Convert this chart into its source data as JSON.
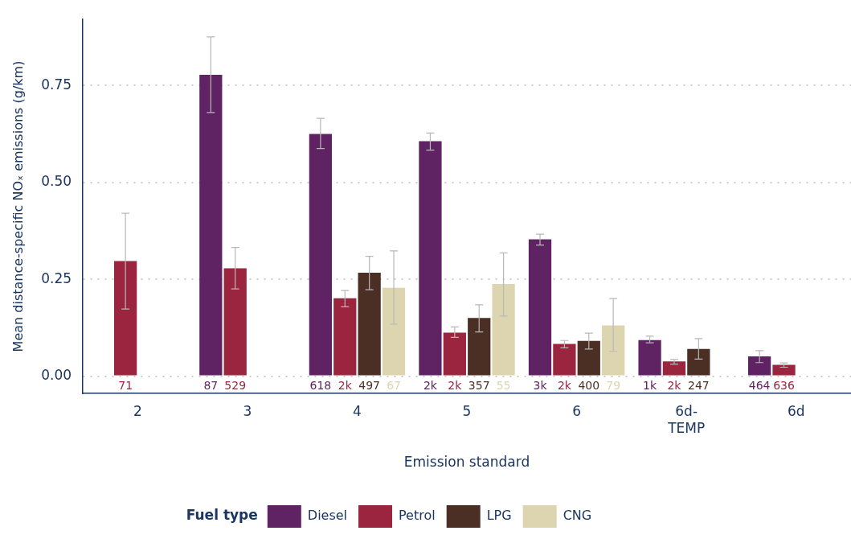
{
  "chart_data": {
    "type": "bar",
    "xlabel": "Emission standard",
    "ylabel": "Mean distance-specific NOₓ emissions (g/km)",
    "legend_title": "Fuel type",
    "categories": [
      "2",
      "3",
      "4",
      "5",
      "6",
      "6d-TEMP",
      "6d"
    ],
    "series": [
      {
        "name": "Diesel",
        "color": "#5f2363",
        "values": [
          null,
          0.777,
          0.625,
          0.606,
          0.353,
          0.093,
          0.051
        ],
        "errors": [
          null,
          [
            0.68,
            0.875
          ],
          [
            0.587,
            0.665
          ],
          [
            0.583,
            0.627
          ],
          [
            0.338,
            0.366
          ],
          [
            0.086,
            0.103
          ],
          [
            0.035,
            0.066
          ]
        ]
      },
      {
        "name": "Petrol",
        "color": "#9b243e",
        "values": [
          0.297,
          0.278,
          0.201,
          0.112,
          0.083,
          0.038,
          0.029
        ],
        "errors": [
          [
            0.173,
            0.42
          ],
          [
            0.225,
            0.332
          ],
          [
            0.179,
            0.221
          ],
          [
            0.1,
            0.127
          ],
          [
            0.073,
            0.092
          ],
          [
            0.031,
            0.043
          ],
          [
            0.023,
            0.034
          ]
        ]
      },
      {
        "name": "LPG",
        "color": "#4b2e24",
        "values": [
          null,
          null,
          0.267,
          0.15,
          0.091,
          0.07,
          null
        ],
        "errors": [
          null,
          null,
          [
            0.223,
            0.309
          ],
          [
            0.114,
            0.184
          ],
          [
            0.07,
            0.111
          ],
          [
            0.044,
            0.097
          ],
          null
        ]
      },
      {
        "name": "CNG",
        "color": "#ddd5b0",
        "values": [
          null,
          null,
          0.228,
          0.238,
          0.131,
          null,
          null
        ],
        "errors": [
          null,
          null,
          [
            0.134,
            0.323
          ],
          [
            0.155,
            0.318
          ],
          [
            0.064,
            0.2
          ],
          null,
          null
        ]
      }
    ],
    "annotations": [
      "71",
      "87",
      "529",
      "618",
      "2k",
      "497",
      "67",
      "2k",
      "2k",
      "357",
      "55",
      "3k",
      "2k",
      "400",
      "79",
      "1k",
      "2k",
      "247",
      "464",
      "636"
    ],
    "ylim": [
      -0.044,
      0.92
    ],
    "yticks": [
      {
        "value": 0,
        "label": "0.00"
      },
      {
        "value": 0.25,
        "label": "0.25"
      },
      {
        "value": 0.5,
        "label": "0.50"
      },
      {
        "value": 0.75,
        "label": "0.75"
      }
    ],
    "grid": "y",
    "legend": "bottom"
  }
}
